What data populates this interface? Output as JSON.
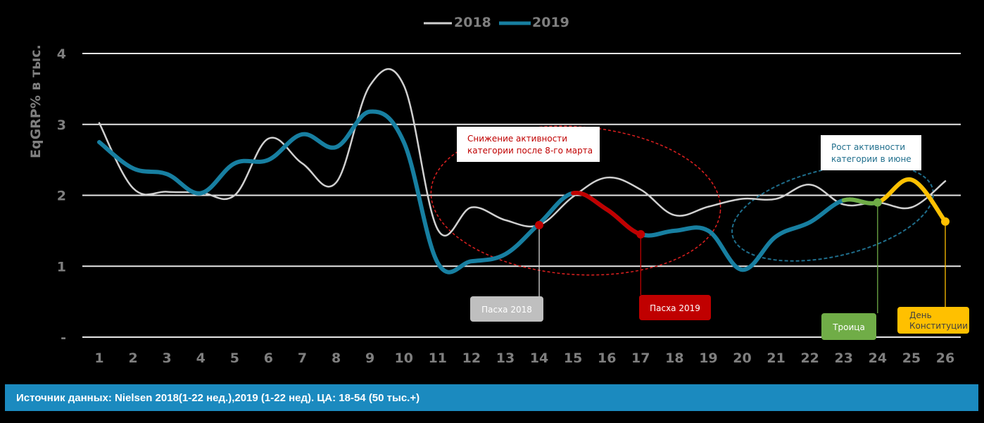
{
  "chart_data": {
    "type": "line",
    "title": "",
    "xlabel": "",
    "ylabel": "EqGRP% в тыс.",
    "ylim": [
      0,
      4
    ],
    "yticks": [
      "-",
      "1",
      "2",
      "3",
      "4"
    ],
    "grid": true,
    "legend_position": "top-center",
    "categories": [
      "1",
      "2",
      "3",
      "4",
      "5",
      "6",
      "7",
      "8",
      "9",
      "10",
      "11",
      "12",
      "13",
      "14",
      "15",
      "16",
      "17",
      "18",
      "19",
      "20",
      "21",
      "22",
      "23",
      "24",
      "25",
      "26"
    ],
    "series": [
      {
        "name": "2018",
        "color": "#d0d0d0",
        "values": [
          3.02,
          2.1,
          2.05,
          2.04,
          2.0,
          2.8,
          2.45,
          2.18,
          3.55,
          3.55,
          1.52,
          1.83,
          1.65,
          1.58,
          1.98,
          2.25,
          2.08,
          1.72,
          1.84,
          1.95,
          1.95,
          2.15,
          1.87,
          1.9,
          1.83,
          2.2
        ]
      },
      {
        "name": "2019",
        "color": "#177fa1",
        "values": [
          2.75,
          2.38,
          2.3,
          2.03,
          2.45,
          2.5,
          2.86,
          2.68,
          3.18,
          2.75,
          1.05,
          1.07,
          1.17,
          1.6,
          2.03,
          1.8,
          1.45,
          1.5,
          1.5,
          0.95,
          1.42,
          1.62,
          1.93,
          1.9,
          2.22,
          1.63
        ],
        "highlights": [
          {
            "from": 15,
            "to": 17,
            "color": "#c00000"
          },
          {
            "from": 23,
            "to": 24,
            "color": "#70ad47"
          },
          {
            "from": 24,
            "to": 26,
            "color": "#ffc000"
          }
        ]
      }
    ],
    "annotations": [
      {
        "text_lines": [
          "Снижение активности",
          "категории после 8-го марта"
        ],
        "color": "#c00000",
        "ellipse_color": "#e02020"
      },
      {
        "text_lines": [
          "Рост активности",
          "категории в июне"
        ],
        "color": "#1f6e8c",
        "ellipse_color": "#1f6e8c"
      }
    ],
    "event_labels": [
      {
        "text_lines": [
          "Пасха 2018"
        ],
        "week": 14,
        "series": "2018",
        "bg": "#bfbfbf",
        "fg": "#ffffff",
        "marker": "#c00000"
      },
      {
        "text_lines": [
          "Пасха 2019"
        ],
        "week": 17,
        "series": "2019",
        "bg": "#c00000",
        "fg": "#ffffff",
        "marker": "#c00000"
      },
      {
        "text_lines": [
          "Троица"
        ],
        "week": 24,
        "series": "2019",
        "bg": "#70ad47",
        "fg": "#ffffff",
        "marker": "#70ad47"
      },
      {
        "text_lines": [
          "День",
          "Конституции"
        ],
        "week": 26,
        "series": "2019",
        "bg": "#ffc000",
        "fg": "#404040",
        "marker": "#ffc000"
      }
    ]
  },
  "footer": {
    "source_text": "Источник данных: Nielsen 2018(1-22 нед.),2019 (1-22 нед). ЦА: 18-54 (50 тыс.+)"
  }
}
